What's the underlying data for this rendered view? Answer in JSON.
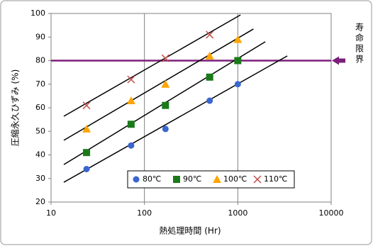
{
  "chart_data": {
    "type": "scatter",
    "x_label": "熱処理時間 (Hr)",
    "y_label": "圧縮永久ひずみ (%)",
    "xlim": [
      10,
      10000
    ],
    "xticks": [
      10,
      100,
      1000,
      10000
    ],
    "xscale": "log",
    "ylim": [
      20,
      100
    ],
    "yticks": [
      20,
      30,
      40,
      50,
      60,
      70,
      80,
      90,
      100
    ],
    "grid": "x",
    "legend": "lower right",
    "series": [
      {
        "name": "80℃",
        "color": "#3a66d0",
        "marker": "circle",
        "x": [
          24,
          72,
          168,
          500,
          1000
        ],
        "values": [
          34,
          44,
          51,
          63,
          70
        ]
      },
      {
        "name": "90℃",
        "color": "#1a7a1a",
        "marker": "square",
        "x": [
          24,
          72,
          168,
          500,
          1000
        ],
        "values": [
          41,
          53,
          61,
          73,
          80
        ]
      },
      {
        "name": "100℃",
        "color": "#ffa500",
        "marker": "triangle",
        "x": [
          24,
          72,
          168,
          500,
          1000
        ],
        "values": [
          51,
          63,
          70,
          82,
          89
        ]
      },
      {
        "name": "110℃",
        "color": "#c0504d",
        "marker": "cross",
        "x": [
          24,
          72,
          168,
          500
        ],
        "values": [
          61,
          72,
          81,
          91
        ]
      }
    ],
    "trendlines": [
      {
        "x": [
          13.7,
          3390
        ],
        "values": [
          28.4,
          82
        ]
      },
      {
        "x": [
          13.7,
          1970
        ],
        "values": [
          35.9,
          88
        ]
      },
      {
        "x": [
          13.7,
          1470
        ],
        "values": [
          46.2,
          93.4
        ]
      },
      {
        "x": [
          13.7,
          1070
        ],
        "values": [
          56.4,
          99.4
        ]
      }
    ],
    "limit": {
      "value": 80,
      "label": "寿命限界",
      "color": "#7b1f7b"
    }
  }
}
